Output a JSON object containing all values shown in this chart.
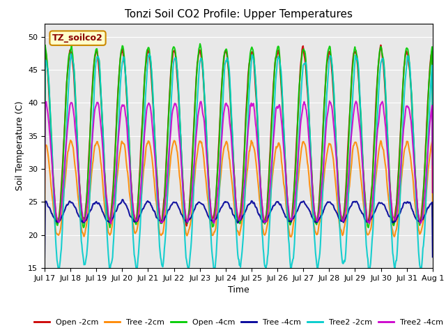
{
  "title": "Tonzi Soil CO2 Profile: Upper Temperatures",
  "ylabel": "Soil Temperature (C)",
  "xlabel": "Time",
  "annotation": "TZ_soilco2",
  "ylim": [
    15,
    52
  ],
  "yticks": [
    15,
    20,
    25,
    30,
    35,
    40,
    45,
    50
  ],
  "bg_color": "#e8e8e8",
  "series": {
    "Open -2cm": {
      "color": "#cc0000",
      "lw": 1.5
    },
    "Tree -2cm": {
      "color": "#ff8800",
      "lw": 1.5
    },
    "Open -4cm": {
      "color": "#00cc00",
      "lw": 1.5
    },
    "Tree -4cm": {
      "color": "#000099",
      "lw": 1.5
    },
    "Tree2 -2cm": {
      "color": "#00cccc",
      "lw": 1.5
    },
    "Tree2 -4cm": {
      "color": "#cc00cc",
      "lw": 1.5
    }
  },
  "xtick_labels": [
    "Jul 17",
    "Jul 18",
    "Jul 19",
    "Jul 20",
    "Jul 21",
    "Jul 22",
    "Jul 23",
    "Jul 24",
    "Jul 25",
    "Jul 26",
    "Jul 27",
    "Jul 28",
    "Jul 29",
    "Jul 30",
    "Jul 31",
    "Aug 1"
  ],
  "n_days": 15,
  "pts_per_day": 48
}
